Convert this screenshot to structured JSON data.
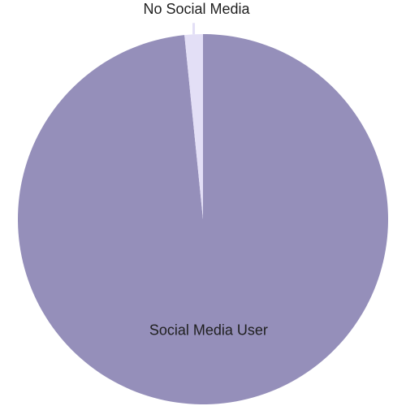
{
  "chart_data": {
    "type": "pie",
    "categories": [
      "Social Media User",
      "No Social Media"
    ],
    "values": [
      98.4,
      1.6
    ],
    "colors": [
      "#958fba",
      "#e3dff6"
    ],
    "title": "",
    "legend": "none"
  }
}
